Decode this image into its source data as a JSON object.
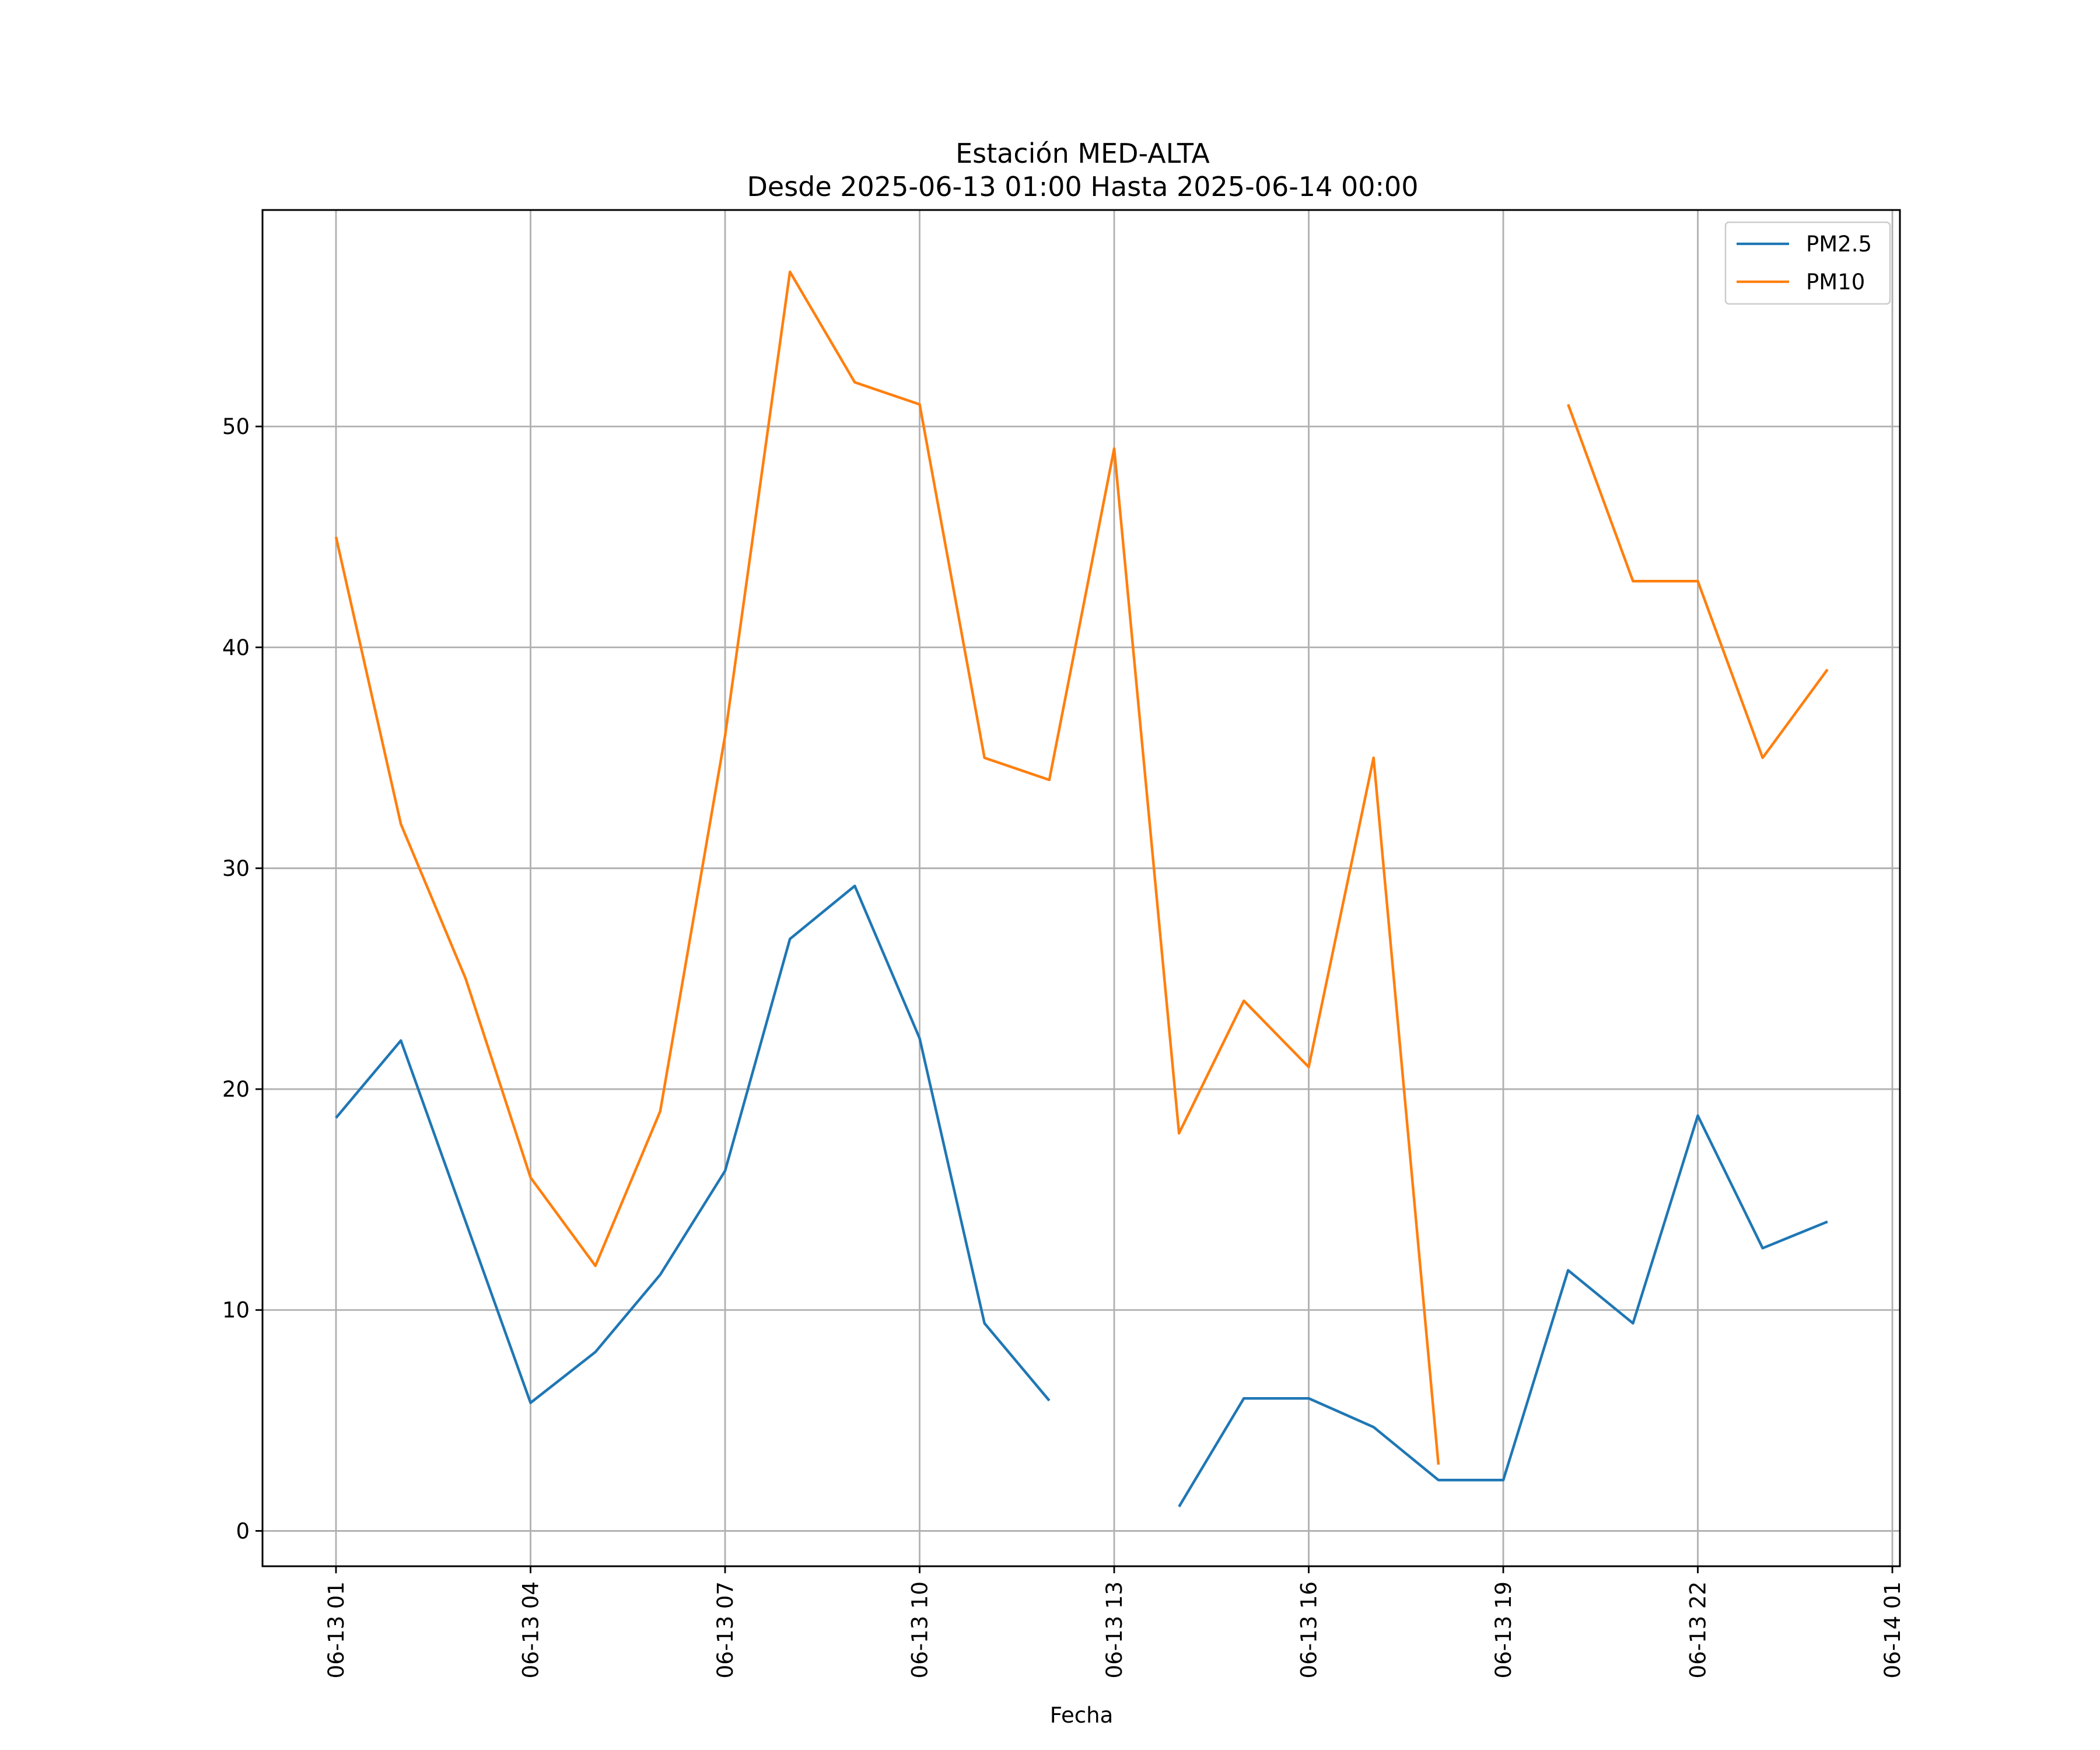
{
  "chart_data": {
    "type": "line",
    "title": "Estación MED-ALTA",
    "subtitle": "Desde 2025-06-13 01:00 Hasta 2025-06-14 00:00",
    "xlabel": "Fecha",
    "ylabel": "",
    "x_ticks": [
      "06-13 01",
      "06-13 04",
      "06-13 07",
      "06-13 10",
      "06-13 13",
      "06-13 16",
      "06-13 19",
      "06-13 22",
      "06-14 01"
    ],
    "y_ticks": [
      0,
      10,
      20,
      30,
      40,
      50
    ],
    "xlim": [
      "2025-06-12 23:52",
      "2025-06-14 01:07"
    ],
    "ylim": [
      -1.6,
      59.8
    ],
    "grid": true,
    "legend_position": "top-right",
    "x": [
      "2025-06-13 01:00",
      "2025-06-13 02:00",
      "2025-06-13 03:00",
      "2025-06-13 04:00",
      "2025-06-13 05:00",
      "2025-06-13 06:00",
      "2025-06-13 07:00",
      "2025-06-13 08:00",
      "2025-06-13 09:00",
      "2025-06-13 10:00",
      "2025-06-13 11:00",
      "2025-06-13 12:00",
      "2025-06-13 13:00",
      "2025-06-13 14:00",
      "2025-06-13 15:00",
      "2025-06-13 16:00",
      "2025-06-13 17:00",
      "2025-06-13 18:00",
      "2025-06-13 19:00",
      "2025-06-13 20:00",
      "2025-06-13 21:00",
      "2025-06-13 22:00",
      "2025-06-13 23:00",
      "2025-06-14 00:00"
    ],
    "series": [
      {
        "name": "PM2.5",
        "color": "#1f77b4",
        "values": [
          18.7,
          22.2,
          14.0,
          5.8,
          8.1,
          11.6,
          16.3,
          26.8,
          29.2,
          22.3,
          9.4,
          5.9,
          null,
          1.1,
          6.0,
          6.0,
          4.7,
          2.3,
          2.3,
          11.8,
          9.4,
          18.8,
          12.8,
          14.0
        ]
      },
      {
        "name": "PM10",
        "color": "#ff7f0e",
        "values": [
          45,
          32,
          25,
          16,
          12,
          19,
          36,
          57,
          52,
          51,
          35,
          34,
          49,
          18,
          24,
          21,
          35,
          3,
          null,
          51,
          43,
          43,
          35,
          39
        ]
      }
    ]
  }
}
